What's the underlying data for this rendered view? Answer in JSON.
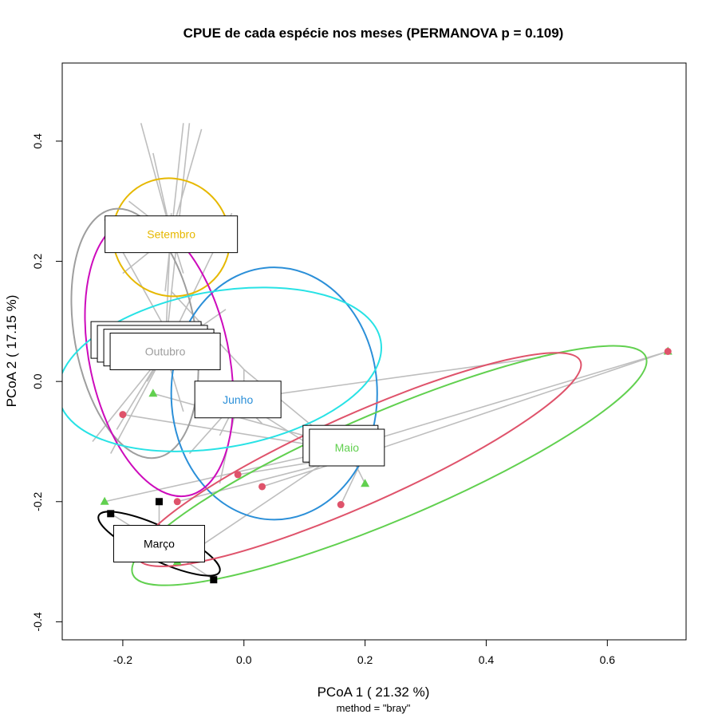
{
  "chart_data": {
    "type": "scatter",
    "title": "CPUE de cada espécie nos meses (PERMANOVA p = 0.109)",
    "xlabel": "PCoA 1 ( 21.32 %)",
    "xsub": "method = \"bray\"",
    "ylabel": "PCoA 2 ( 17.15 %)",
    "xlim": [
      -0.3,
      0.73
    ],
    "ylim": [
      -0.43,
      0.53
    ],
    "xticks": [
      -0.2,
      0.0,
      0.2,
      0.4,
      0.6
    ],
    "xtick_labels": [
      "-0.2",
      "0.0",
      "0.2",
      "0.4",
      "0.6"
    ],
    "yticks": [
      -0.4,
      -0.2,
      0.0,
      0.2,
      0.4
    ],
    "ytick_labels": [
      "-0.4",
      "-0.2",
      "0.0",
      "0.2",
      "0.4"
    ],
    "spider_color": "#bebebe",
    "groups": [
      {
        "name": "Setembro",
        "color": "#e6b800",
        "centroid": [
          -0.12,
          0.245
        ],
        "ellipse": {
          "cx": -0.12,
          "cy": 0.24,
          "rx": 0.095,
          "ry": 0.1,
          "angle": 40
        },
        "points": [
          [
            -0.17,
            0.43
          ],
          [
            -0.15,
            0.38
          ],
          [
            -0.1,
            0.43
          ],
          [
            -0.07,
            0.42
          ],
          [
            -0.19,
            0.3
          ],
          [
            -0.2,
            0.18
          ],
          [
            -0.13,
            0.15
          ],
          [
            -0.16,
            0.22
          ],
          [
            -0.07,
            0.25
          ],
          [
            -0.1,
            0.18
          ]
        ]
      },
      {
        "name": "Outubro",
        "color": "#9e9e9e",
        "centroid": [
          -0.13,
          0.05
        ],
        "ellipse": {
          "cx": -0.18,
          "cy": 0.08,
          "rx": 0.1,
          "ry": 0.21,
          "angle": 10
        },
        "points": [
          [
            -0.09,
            0.43
          ],
          [
            -0.2,
            0.1
          ],
          [
            -0.16,
            0.0
          ],
          [
            -0.25,
            -0.1
          ],
          [
            -0.22,
            -0.12
          ],
          [
            -0.1,
            -0.05
          ],
          [
            -0.02,
            0.28
          ],
          [
            -0.12,
            0.28
          ],
          [
            -0.03,
            0.12
          ]
        ]
      },
      {
        "name": "Junho",
        "color": "#2b8fd8",
        "centroid": [
          -0.01,
          -0.03
        ],
        "ellipse": {
          "cx": 0.05,
          "cy": -0.02,
          "rx": 0.17,
          "ry": 0.21,
          "angle": 0
        },
        "points": [
          [
            0.03,
            -0.07
          ],
          [
            0.49,
            0.04
          ],
          [
            -0.04,
            -0.09
          ],
          [
            0.1,
            -0.1
          ],
          [
            -0.09,
            -0.12
          ],
          [
            -0.04,
            -0.17
          ]
        ]
      },
      {
        "name": "Maio",
        "color": "#61d04f",
        "centroid": [
          0.17,
          -0.11
        ],
        "ellipse": {
          "cx": 0.24,
          "cy": -0.14,
          "rx": 0.46,
          "ry": 0.09,
          "angle": 23
        },
        "points": [
          [
            0.7,
            0.05
          ],
          [
            -0.23,
            -0.2
          ],
          [
            -0.15,
            -0.02
          ],
          [
            -0.11,
            -0.3
          ],
          [
            0.2,
            -0.17
          ]
        ]
      },
      {
        "name": "Março",
        "color": "#000000",
        "centroid": [
          -0.14,
          -0.27
        ],
        "ellipse": {
          "cx": -0.14,
          "cy": -0.27,
          "rx": 0.11,
          "ry": 0.028,
          "angle": -25
        },
        "points": [
          [
            -0.22,
            -0.22
          ],
          [
            -0.14,
            -0.2
          ],
          [
            -0.05,
            -0.33
          ]
        ]
      },
      {
        "name": "",
        "color": "#df536b",
        "centroid": [
          0.2,
          -0.12
        ],
        "ellipse": {
          "cx": 0.19,
          "cy": -0.13,
          "rx": 0.4,
          "ry": 0.075,
          "angle": 24
        },
        "points": [
          [
            -0.2,
            -0.055
          ],
          [
            -0.11,
            -0.2
          ],
          [
            -0.01,
            -0.155
          ],
          [
            0.03,
            -0.175
          ],
          [
            0.16,
            -0.205
          ],
          [
            0.7,
            0.05
          ]
        ]
      },
      {
        "name": "",
        "color": "#cd0bbc",
        "centroid": [
          -0.12,
          0.07
        ],
        "ellipse": {
          "cx": -0.14,
          "cy": 0.04,
          "rx": 0.115,
          "ry": 0.235,
          "angle": 12
        },
        "points": [
          [
            -0.23,
            0.27
          ],
          [
            -0.18,
            0.04
          ],
          [
            -0.21,
            -0.08
          ]
        ]
      },
      {
        "name": "",
        "color": "#28e2e5",
        "centroid": [
          0.0,
          0.02
        ],
        "ellipse": {
          "cx": -0.04,
          "cy": 0.02,
          "rx": 0.27,
          "ry": 0.13,
          "angle": 10
        },
        "points": [
          [
            -0.12,
            0.15
          ],
          [
            0.12,
            -0.08
          ],
          [
            0.0,
            -0.05
          ]
        ]
      }
    ],
    "label_boxes": [
      {
        "group": "Setembro",
        "labels": [
          "Setembro"
        ]
      },
      {
        "group": "Outubro",
        "labels": [
          "",
          "",
          "",
          "Outubro"
        ]
      },
      {
        "group": "Junho",
        "labels": [
          "Junho"
        ]
      },
      {
        "group": "Maio",
        "labels": [
          "",
          "Maio"
        ]
      },
      {
        "group": "Março",
        "labels": [
          "Março"
        ]
      }
    ]
  }
}
